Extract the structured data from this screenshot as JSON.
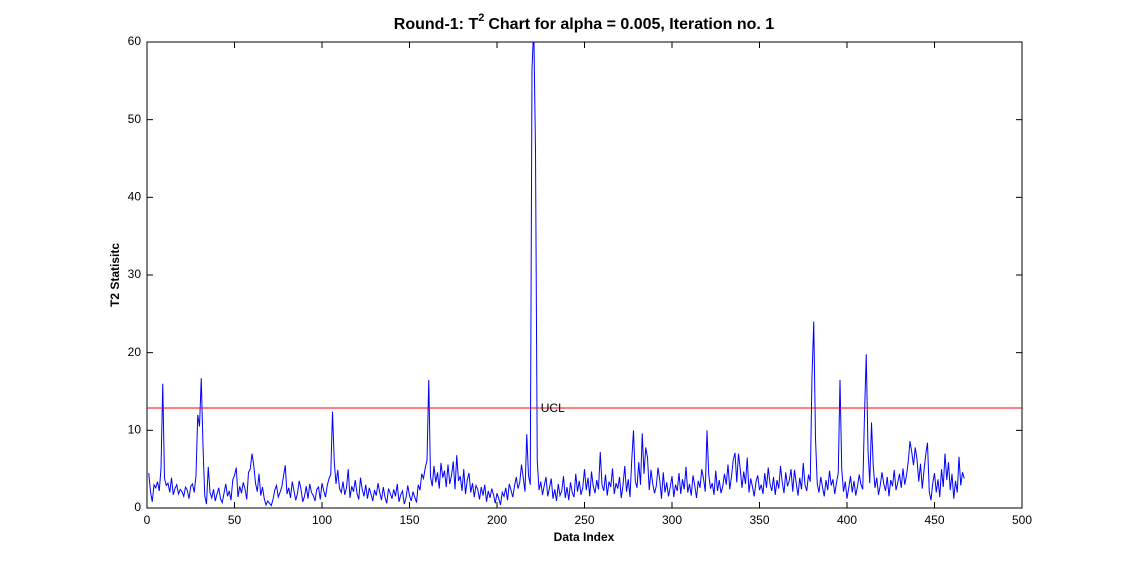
{
  "chart_data": {
    "type": "line",
    "title": "Round-1: T",
    "title_superscript": "2",
    "title_rest": "Chart for alpha = 0.005, Iteration no. 1",
    "xlabel": "Data Index",
    "ylabel": "T2 Statisitc",
    "xlim": [
      0,
      500
    ],
    "xticks": [
      0,
      50,
      100,
      150,
      200,
      250,
      300,
      350,
      400,
      450,
      500
    ],
    "ylim": [
      0,
      60
    ],
    "yticks": [
      0,
      10,
      20,
      30,
      40,
      50,
      60
    ],
    "grid": false,
    "color": "#0000ff",
    "ucl": {
      "label": "UCL",
      "value": 12.87,
      "color": "#ff0000"
    },
    "x": [
      1,
      2,
      3,
      4,
      5,
      6,
      7,
      8,
      9,
      10,
      11,
      12,
      13,
      14,
      15,
      16,
      17,
      18,
      19,
      20,
      21,
      22,
      23,
      24,
      25,
      26,
      27,
      28,
      29,
      30,
      31,
      32,
      33,
      34,
      35,
      36,
      37,
      38,
      39,
      40,
      41,
      42,
      43,
      44,
      45,
      46,
      47,
      48,
      49,
      50,
      51,
      52,
      53,
      54,
      55,
      56,
      57,
      58,
      59,
      60,
      61,
      62,
      63,
      64,
      65,
      66,
      67,
      68,
      69,
      70,
      71,
      72,
      73,
      74,
      75,
      76,
      77,
      78,
      79,
      80,
      81,
      82,
      83,
      84,
      85,
      86,
      87,
      88,
      89,
      90,
      91,
      92,
      93,
      94,
      95,
      96,
      97,
      98,
      99,
      100,
      101,
      102,
      103,
      104,
      105,
      106,
      107,
      108,
      109,
      110,
      111,
      112,
      113,
      114,
      115,
      116,
      117,
      118,
      119,
      120,
      121,
      122,
      123,
      124,
      125,
      126,
      127,
      128,
      129,
      130,
      131,
      132,
      133,
      134,
      135,
      136,
      137,
      138,
      139,
      140,
      141,
      142,
      143,
      144,
      145,
      146,
      147,
      148,
      149,
      150,
      151,
      152,
      153,
      154,
      155,
      156,
      157,
      158,
      159,
      160,
      161,
      162,
      163,
      164,
      165,
      166,
      167,
      168,
      169,
      170,
      171,
      172,
      173,
      174,
      175,
      176,
      177,
      178,
      179,
      180,
      181,
      182,
      183,
      184,
      185,
      186,
      187,
      188,
      189,
      190,
      191,
      192,
      193,
      194,
      195,
      196,
      197,
      198,
      199,
      200,
      201,
      202,
      203,
      204,
      205,
      206,
      207,
      208,
      209,
      210,
      211,
      212,
      213,
      214,
      215,
      216,
      217,
      218,
      219,
      220,
      221,
      222,
      223,
      224,
      225,
      226,
      227,
      228,
      229,
      230,
      231,
      232,
      233,
      234,
      235,
      236,
      237,
      238,
      239,
      240,
      241,
      242,
      243,
      244,
      245,
      246,
      247,
      248,
      249,
      250,
      251,
      252,
      253,
      254,
      255,
      256,
      257,
      258,
      259,
      260,
      261,
      262,
      263,
      264,
      265,
      266,
      267,
      268,
      269,
      270,
      271,
      272,
      273,
      274,
      275,
      276,
      277,
      278,
      279,
      280,
      281,
      282,
      283,
      284,
      285,
      286,
      287,
      288,
      289,
      290,
      291,
      292,
      293,
      294,
      295,
      296,
      297,
      298,
      299,
      300,
      301,
      302,
      303,
      304,
      305,
      306,
      307,
      308,
      309,
      310,
      311,
      312,
      313,
      314,
      315,
      316,
      317,
      318,
      319,
      320,
      321,
      322,
      323,
      324,
      325,
      326,
      327,
      328,
      329,
      330,
      331,
      332,
      333,
      334,
      335,
      336,
      337,
      338,
      339,
      340,
      341,
      342,
      343,
      344,
      345,
      346,
      347,
      348,
      349,
      350,
      351,
      352,
      353,
      354,
      355,
      356,
      357,
      358,
      359,
      360,
      361,
      362,
      363,
      364,
      365,
      366,
      367,
      368,
      369,
      370,
      371,
      372,
      373,
      374,
      375,
      376,
      377,
      378,
      379,
      380,
      381,
      382,
      383,
      384,
      385,
      386,
      387,
      388,
      389,
      390,
      391,
      392,
      393,
      394,
      395,
      396,
      397,
      398,
      399,
      400,
      401,
      402,
      403,
      404,
      405,
      406,
      407,
      408,
      409,
      410,
      411,
      412,
      413,
      414,
      415,
      416,
      417,
      418,
      419,
      420,
      421,
      422,
      423,
      424,
      425,
      426,
      427,
      428,
      429,
      430,
      431,
      432,
      433,
      434,
      435,
      436,
      437,
      438,
      439,
      440,
      441,
      442,
      443,
      444,
      445,
      446,
      447,
      448,
      449,
      450,
      451,
      452,
      453,
      454,
      455,
      456,
      457,
      458,
      459,
      460,
      461,
      462,
      463,
      464,
      465,
      466,
      467
    ],
    "values": [
      4.5,
      2.1,
      0.8,
      3.0,
      2.6,
      3.4,
      2.2,
      5.1,
      16.0,
      3.8,
      2.9,
      3.2,
      2.0,
      3.9,
      1.7,
      2.5,
      3.0,
      1.8,
      2.4,
      2.1,
      1.5,
      2.7,
      2.3,
      1.2,
      2.8,
      3.1,
      2.0,
      4.2,
      12.0,
      10.5,
      16.7,
      8.0,
      1.6,
      0.5,
      5.3,
      2.0,
      1.3,
      2.4,
      0.9,
      1.8,
      2.6,
      1.2,
      0.7,
      1.9,
      3.1,
      1.5,
      2.2,
      1.0,
      3.6,
      4.2,
      5.2,
      1.4,
      2.8,
      1.9,
      3.3,
      2.5,
      1.1,
      4.6,
      5.0,
      7.0,
      5.5,
      3.2,
      2.1,
      4.4,
      1.6,
      2.7,
      1.2,
      0.4,
      0.9,
      0.6,
      0.3,
      1.1,
      2.3,
      2.9,
      1.4,
      2.0,
      2.7,
      4.1,
      5.5,
      1.8,
      2.6,
      1.3,
      3.4,
      2.2,
      1.0,
      1.9,
      3.5,
      2.4,
      0.8,
      1.5,
      2.8,
      1.2,
      3.1,
      2.0,
      1.6,
      0.9,
      2.4,
      2.7,
      1.1,
      3.2,
      2.2,
      1.4,
      2.9,
      3.8,
      4.3,
      12.4,
      6.0,
      3.1,
      4.9,
      2.5,
      2.0,
      3.4,
      1.7,
      2.6,
      5.0,
      1.3,
      2.8,
      2.1,
      3.6,
      1.9,
      1.1,
      3.9,
      2.4,
      1.5,
      3.0,
      1.2,
      2.6,
      1.8,
      0.9,
      2.3,
      1.6,
      3.2,
      2.0,
      1.0,
      2.7,
      1.4,
      0.6,
      2.5,
      1.9,
      1.2,
      2.4,
      1.5,
      3.1,
      0.8,
      1.7,
      2.2,
      0.5,
      1.3,
      2.9,
      1.6,
      0.9,
      2.1,
      1.4,
      0.7,
      3.0,
      2.3,
      4.4,
      3.8,
      5.2,
      6.1,
      16.5,
      4.0,
      2.8,
      5.4,
      3.3,
      4.6,
      2.5,
      5.8,
      3.9,
      4.8,
      2.7,
      5.6,
      3.1,
      4.2,
      6.0,
      2.4,
      6.8,
      3.5,
      4.1,
      2.2,
      5.0,
      1.8,
      3.6,
      4.5,
      2.0,
      3.2,
      1.4,
      2.9,
      2.4,
      1.1,
      2.7,
      1.6,
      3.0,
      0.8,
      2.2,
      1.3,
      2.5,
      1.7,
      0.6,
      1.9,
      1.2,
      0.4,
      2.0,
      1.5,
      2.6,
      1.0,
      3.1,
      2.3,
      1.4,
      2.8,
      4.0,
      2.5,
      3.3,
      5.6,
      3.9,
      2.1,
      9.5,
      4.2,
      3.0,
      56.5,
      62.0,
      46.0,
      6.1,
      2.3,
      3.4,
      1.7,
      2.9,
      4.0,
      1.5,
      2.6,
      3.8,
      1.2,
      2.4,
      0.9,
      3.1,
      1.6,
      2.2,
      4.1,
      1.3,
      2.7,
      1.0,
      3.3,
      2.0,
      1.4,
      4.4,
      2.1,
      3.5,
      1.7,
      2.6,
      5.0,
      2.3,
      3.9,
      1.5,
      4.7,
      2.8,
      1.9,
      3.6,
      2.4,
      7.2,
      3.0,
      2.2,
      4.3,
      1.6,
      3.4,
      2.7,
      5.1,
      1.8,
      3.2,
      2.5,
      4.0,
      1.3,
      2.9,
      5.4,
      2.1,
      3.7,
      1.4,
      6.2,
      10.0,
      3.5,
      2.6,
      5.9,
      3.0,
      9.6,
      4.4,
      7.8,
      6.5,
      2.3,
      4.9,
      3.1,
      1.9,
      2.8,
      5.2,
      3.6,
      1.2,
      4.6,
      2.0,
      3.3,
      1.5,
      2.7,
      4.1,
      1.4,
      3.0,
      2.2,
      4.5,
      1.8,
      3.7,
      2.4,
      5.3,
      2.0,
      3.1,
      1.6,
      4.2,
      2.9,
      1.3,
      3.5,
      2.6,
      5.0,
      3.8,
      2.1,
      10.0,
      4.3,
      2.5,
      3.2,
      1.7,
      4.8,
      2.2,
      3.6,
      1.9,
      2.8,
      4.4,
      3.0,
      5.6,
      2.4,
      4.1,
      6.2,
      7.1,
      3.3,
      7.0,
      5.0,
      2.6,
      4.7,
      3.1,
      6.5,
      2.0,
      3.8,
      2.7,
      1.5,
      3.4,
      4.2,
      2.3,
      3.0,
      1.8,
      4.5,
      2.6,
      5.2,
      3.1,
      2.2,
      4.0,
      1.7,
      3.6,
      2.5,
      5.4,
      3.3,
      1.9,
      4.6,
      2.8,
      3.5,
      5.0,
      2.1,
      4.9,
      3.2,
      1.6,
      3.9,
      2.4,
      5.8,
      3.0,
      2.2,
      4.3,
      3.4,
      17.0,
      24.0,
      9.0,
      3.1,
      2.0,
      4.0,
      2.7,
      1.5,
      3.6,
      2.3,
      4.8,
      2.9,
      3.7,
      1.8,
      3.3,
      4.5,
      16.5,
      5.0,
      2.1,
      3.4,
      1.2,
      2.6,
      4.1,
      2.0,
      3.5,
      1.6,
      2.8,
      4.3,
      3.0,
      2.4,
      12.0,
      19.8,
      7.5,
      3.2,
      11.0,
      5.4,
      2.6,
      3.9,
      1.7,
      2.9,
      4.6,
      3.1,
      2.2,
      4.0,
      1.5,
      3.6,
      2.8,
      4.9,
      2.3,
      3.3,
      4.4,
      2.6,
      5.1,
      3.0,
      4.2,
      6.0,
      8.6,
      7.2,
      5.5,
      7.8,
      6.3,
      3.4,
      5.7,
      2.5,
      4.8,
      6.9,
      8.4,
      2.1,
      1.0,
      3.2,
      4.5,
      2.0,
      3.7,
      1.4,
      5.0,
      2.7,
      7.0,
      3.6,
      5.9,
      2.3,
      4.4,
      1.2,
      3.5,
      2.0,
      6.6,
      2.9,
      4.6,
      3.8
    ]
  }
}
